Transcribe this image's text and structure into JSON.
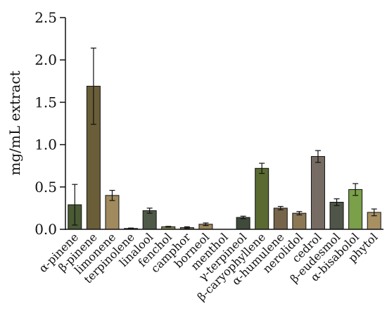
{
  "chart_data": {
    "type": "bar",
    "title": "",
    "xlabel": "",
    "ylabel": "mg/mL extract",
    "ylim": [
      0,
      2.5
    ],
    "yticks": [
      "0.0",
      "0.5",
      "1.0",
      "1.5",
      "2.0",
      "2.5"
    ],
    "grid": false,
    "categories": [
      "α-pinene",
      "β-pinene",
      "limonene",
      "terpinolene",
      "linalool",
      "fenchol",
      "camphor",
      "borneol",
      "menthol",
      "γ-terpineol",
      "β-caryophyllene",
      "α-humulene",
      "nerolidol",
      "cedrol",
      "β-eudesmol",
      "α-bisabolol",
      "phytol"
    ],
    "values": [
      0.29,
      1.69,
      0.4,
      0.01,
      0.22,
      0.03,
      0.02,
      0.06,
      0.0,
      0.14,
      0.72,
      0.25,
      0.19,
      0.86,
      0.32,
      0.47,
      0.2
    ],
    "errors": [
      0.24,
      0.45,
      0.06,
      0.005,
      0.03,
      0.005,
      0.01,
      0.015,
      0.0,
      0.015,
      0.06,
      0.02,
      0.02,
      0.07,
      0.04,
      0.07,
      0.04
    ],
    "colors": [
      "#4a5a35",
      "#6a5e38",
      "#a08a5e",
      "#222222",
      "#4e5947",
      "#8a8a52",
      "#8e7b5b",
      "#9c8658",
      "#222222",
      "#3f4a3a",
      "#5a6a30",
      "#76654a",
      "#8c7855",
      "#766c63",
      "#4f5649",
      "#7aa049",
      "#a89062"
    ]
  }
}
